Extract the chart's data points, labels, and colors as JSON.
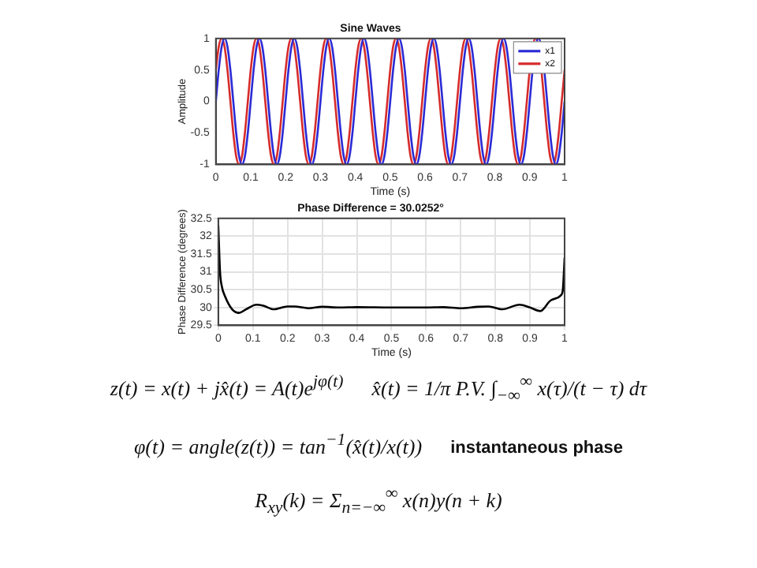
{
  "chart_data": [
    {
      "type": "line",
      "title": "Sine Waves",
      "xlabel": "Time (s)",
      "ylabel": "Amplitude",
      "marker": "none",
      "line_style": "solid",
      "legend": "top right",
      "x": [
        0,
        0.0083,
        0.0167,
        0.025,
        0.0333,
        0.0417,
        0.05,
        0.0583,
        0.0667,
        0.075,
        0.0833,
        0.0917,
        0.1,
        0.1083,
        0.1167,
        0.125,
        0.1333,
        0.1417,
        0.15,
        0.1583,
        0.1667,
        0.175,
        0.1833,
        0.1917,
        0.2,
        0.2083,
        0.2167,
        0.225,
        0.2333,
        0.2417,
        0.25,
        0.2583,
        0.2667,
        0.275,
        0.2833,
        0.2917,
        0.3,
        0.3083,
        0.3167,
        0.325,
        0.3333,
        0.3417,
        0.35,
        0.3583,
        0.3667,
        0.375,
        0.3833,
        0.3917,
        0.4,
        0.4083,
        0.4167,
        0.425,
        0.4333,
        0.4417,
        0.45,
        0.4583,
        0.4667,
        0.475,
        0.4833,
        0.4917,
        0.5,
        0.5083,
        0.5167,
        0.525,
        0.5333,
        0.5417,
        0.55,
        0.5583,
        0.5667,
        0.575,
        0.5833,
        0.5917,
        0.6,
        0.6083,
        0.6167,
        0.625,
        0.6333,
        0.6417,
        0.65,
        0.6583,
        0.6667,
        0.675,
        0.6833,
        0.6917,
        0.7,
        0.7083,
        0.7167,
        0.725,
        0.7333,
        0.7417,
        0.75,
        0.7583,
        0.7667,
        0.775,
        0.7833,
        0.7917,
        0.8,
        0.8083,
        0.8167,
        0.825,
        0.8333,
        0.8417,
        0.85,
        0.8583,
        0.8667,
        0.875,
        0.8833,
        0.8917,
        0.9,
        0.9083,
        0.9167,
        0.925,
        0.9333,
        0.9417,
        0.95,
        0.9583,
        0.9667,
        0.975,
        0.9833,
        0.9917,
        1
      ],
      "series": [
        {
          "name": "x1",
          "color": "#2b2bd6",
          "values": [
            0,
            0.5,
            0.87,
            1,
            0.87,
            0.5,
            0,
            -0.5,
            -0.87,
            -1,
            -0.87,
            -0.5,
            0,
            0.5,
            0.87,
            1,
            0.87,
            0.5,
            0,
            -0.5,
            -0.87,
            -1,
            -0.87,
            -0.5,
            0,
            0.5,
            0.87,
            1,
            0.87,
            0.5,
            0,
            -0.5,
            -0.87,
            -1,
            -0.87,
            -0.5,
            0,
            0.5,
            0.87,
            1,
            0.87,
            0.5,
            0,
            -0.5,
            -0.87,
            -1,
            -0.87,
            -0.5,
            0,
            0.5,
            0.87,
            1,
            0.87,
            0.5,
            0,
            -0.5,
            -0.87,
            -1,
            -0.87,
            -0.5,
            0,
            0.5,
            0.87,
            1,
            0.87,
            0.5,
            0,
            -0.5,
            -0.87,
            -1,
            -0.87,
            -0.5,
            0,
            0.5,
            0.87,
            1,
            0.87,
            0.5,
            0,
            -0.5,
            -0.87,
            -1,
            -0.87,
            -0.5,
            0,
            0.5,
            0.87,
            1,
            0.87,
            0.5,
            0,
            -0.5,
            -0.87,
            -1,
            -0.87,
            -0.5,
            0,
            0.5,
            0.87,
            1,
            0.87,
            0.5,
            0,
            -0.5,
            -0.87,
            -1,
            -0.87,
            -0.5,
            0,
            0.5,
            0.87,
            1,
            0.87,
            0.5,
            0,
            -0.5,
            -0.87,
            -1,
            -0.87,
            -0.5,
            0
          ]
        },
        {
          "name": "x2",
          "color": "#d62b2b",
          "values": [
            0.5,
            0.87,
            1,
            0.87,
            0.5,
            0,
            -0.5,
            -0.87,
            -1,
            -0.87,
            -0.5,
            0,
            0.5,
            0.87,
            1,
            0.87,
            0.5,
            0,
            -0.5,
            -0.87,
            -1,
            -0.87,
            -0.5,
            0,
            0.5,
            0.87,
            1,
            0.87,
            0.5,
            0,
            -0.5,
            -0.87,
            -1,
            -0.87,
            -0.5,
            0,
            0.5,
            0.87,
            1,
            0.87,
            0.5,
            0,
            -0.5,
            -0.87,
            -1,
            -0.87,
            -0.5,
            0,
            0.5,
            0.87,
            1,
            0.87,
            0.5,
            0,
            -0.5,
            -0.87,
            -1,
            -0.87,
            -0.5,
            0,
            0.5,
            0.87,
            1,
            0.87,
            0.5,
            0,
            -0.5,
            -0.87,
            -1,
            -0.87,
            -0.5,
            0,
            0.5,
            0.87,
            1,
            0.87,
            0.5,
            0,
            -0.5,
            -0.87,
            -1,
            -0.87,
            -0.5,
            0,
            0.5,
            0.87,
            1,
            0.87,
            0.5,
            0,
            -0.5,
            -0.87,
            -1,
            -0.87,
            -0.5,
            0,
            0.5,
            0.87,
            1,
            0.87,
            0.5,
            0,
            -0.5,
            -0.87,
            -1,
            -0.87,
            -0.5,
            0,
            0.5,
            0.87,
            1,
            0.87,
            0.5,
            0,
            -0.5,
            -0.87,
            -1,
            -0.87,
            -0.5,
            0,
            0.5
          ]
        }
      ],
      "xlim": [
        0,
        1
      ],
      "xticks": [
        0,
        0.1,
        0.2,
        0.3,
        0.4,
        0.5,
        0.6,
        0.7,
        0.8,
        0.9,
        1
      ],
      "ylim": [
        -1,
        1
      ],
      "yticks": [
        -1,
        -0.5,
        0,
        0.5,
        1
      ],
      "grid": false
    },
    {
      "type": "line",
      "title": "Phase Difference = 30.0252°",
      "xlabel": "Time (s)",
      "ylabel": "Phase Difference (degrees)",
      "marker": "none",
      "line_style": "solid",
      "legend": false,
      "x": [
        0,
        0.005,
        0.01,
        0.02,
        0.04,
        0.06,
        0.08,
        0.11,
        0.13,
        0.16,
        0.2,
        0.22,
        0.26,
        0.3,
        0.35,
        0.4,
        0.5,
        0.6,
        0.65,
        0.7,
        0.75,
        0.78,
        0.82,
        0.87,
        0.9,
        0.93,
        0.96,
        0.99,
        0.995,
        1
      ],
      "series": [
        {
          "color": "#000000",
          "values": [
            32.3,
            31,
            30.6,
            30.3,
            29.95,
            29.85,
            29.95,
            30.08,
            30.05,
            29.95,
            30.03,
            30.03,
            29.98,
            30.02,
            30,
            30.01,
            30,
            30,
            30.01,
            29.98,
            30.02,
            30.03,
            29.95,
            30.08,
            30,
            29.9,
            30.2,
            30.35,
            30.5,
            31.4
          ]
        }
      ],
      "xlim": [
        0,
        1
      ],
      "xticks": [
        0,
        0.1,
        0.2,
        0.3,
        0.4,
        0.5,
        0.6,
        0.7,
        0.8,
        0.9,
        1
      ],
      "ylim": [
        29.5,
        32.5
      ],
      "yticks": [
        29.5,
        30,
        30.5,
        31,
        31.5,
        32,
        32.5
      ],
      "grid": true,
      "annotations": [
        "z(t) = x(t) + jx̂(t) = A(t)e$^{jφ(t)}$",
        "x̂(t) = 1/π P.V. ∫$_{−∞}$$^{∞}$ x(τ)/(t − τ) dτ",
        "φ(t) = angle(z(t)) = tan$^{−1}$(x̂(t)/x(t))",
        "instantaneous phase",
        "R$_{xy}$(k) = Σ$_{n=−∞}$$^{∞}$ x(n)y(n + k)"
      ]
    }
  ]
}
